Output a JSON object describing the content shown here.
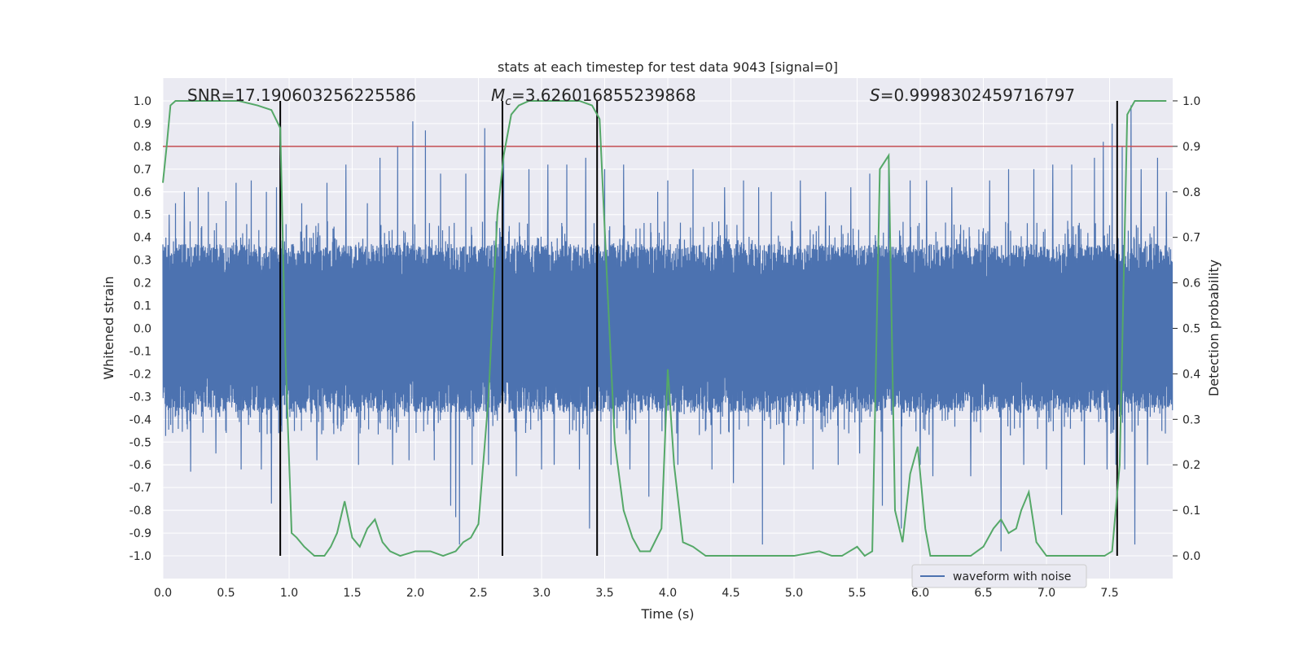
{
  "chart_data": {
    "type": "line",
    "title": "stats at each timestep for test data 9043 [signal=0]",
    "xlabel": "Time (s)",
    "ylabel": "Whitened strain",
    "y2label": "Detection probability",
    "xlim": [
      0,
      8
    ],
    "ylim": [
      -1.1,
      1.1
    ],
    "y2lim": [
      -0.05,
      1.05
    ],
    "xticks": [
      0.0,
      0.5,
      1.0,
      1.5,
      2.0,
      2.5,
      3.0,
      3.5,
      4.0,
      4.5,
      5.0,
      5.5,
      6.0,
      6.5,
      7.0,
      7.5
    ],
    "yticks": [
      -1.0,
      -0.9,
      -0.8,
      -0.7,
      -0.6,
      -0.5,
      -0.4,
      -0.3,
      -0.2,
      -0.1,
      0.0,
      0.1,
      0.2,
      0.3,
      0.4,
      0.5,
      0.6,
      0.7,
      0.8,
      0.9,
      1.0
    ],
    "y2ticks": [
      0.0,
      0.1,
      0.2,
      0.3,
      0.4,
      0.5,
      0.6,
      0.7,
      0.8,
      0.9,
      1.0
    ],
    "grid": true,
    "legend": {
      "position": "bottom-right",
      "entries": [
        "waveform with noise"
      ]
    },
    "annotations": {
      "snr": "SNR=17.190603256225586",
      "mc_symbol": "M",
      "mc_subscript": "c",
      "mc_value": "=3.626016855239868",
      "s_symbol": "S",
      "s_value": "=0.9998302459716797"
    },
    "threshold_line": {
      "axis": "y2",
      "value": 0.9,
      "color": "#c44e52"
    },
    "vertical_lines": [
      0.93,
      2.69,
      3.44,
      7.56
    ],
    "vertical_line_range_y2": [
      0.0,
      1.0
    ],
    "series": [
      {
        "name": "waveform with noise",
        "axis": "y",
        "color": "#4c72b0",
        "sample_rate": 500,
        "typical_amplitude": 0.38,
        "peaks": [
          [
            0.05,
            0.5
          ],
          [
            0.1,
            0.55
          ],
          [
            0.17,
            0.6
          ],
          [
            0.22,
            -0.63
          ],
          [
            0.28,
            0.62
          ],
          [
            0.36,
            0.6
          ],
          [
            0.42,
            -0.55
          ],
          [
            0.5,
            0.56
          ],
          [
            0.58,
            0.64
          ],
          [
            0.62,
            -0.62
          ],
          [
            0.7,
            0.65
          ],
          [
            0.78,
            -0.62
          ],
          [
            0.82,
            0.6
          ],
          [
            0.86,
            -0.77
          ],
          [
            0.9,
            0.62
          ],
          [
            1.1,
            0.55
          ],
          [
            1.22,
            -0.58
          ],
          [
            1.3,
            0.64
          ],
          [
            1.45,
            0.72
          ],
          [
            1.55,
            -0.6
          ],
          [
            1.62,
            0.55
          ],
          [
            1.72,
            0.75
          ],
          [
            1.82,
            -0.6
          ],
          [
            1.86,
            0.8
          ],
          [
            1.95,
            -0.58
          ],
          [
            1.98,
            0.91
          ],
          [
            2.08,
            0.87
          ],
          [
            2.15,
            -0.58
          ],
          [
            2.2,
            0.68
          ],
          [
            2.28,
            -0.78
          ],
          [
            2.32,
            -0.83
          ],
          [
            2.35,
            -0.95
          ],
          [
            2.4,
            0.68
          ],
          [
            2.45,
            -0.6
          ],
          [
            2.55,
            0.88
          ],
          [
            2.58,
            -0.6
          ],
          [
            2.7,
            0.76
          ],
          [
            2.8,
            -0.65
          ],
          [
            2.9,
            0.7
          ],
          [
            3.0,
            -0.62
          ],
          [
            3.05,
            0.72
          ],
          [
            3.1,
            -0.6
          ],
          [
            3.2,
            0.72
          ],
          [
            3.3,
            -0.62
          ],
          [
            3.35,
            0.75
          ],
          [
            3.38,
            -0.88
          ],
          [
            3.5,
            0.7
          ],
          [
            3.55,
            -0.6
          ],
          [
            3.65,
            0.72
          ],
          [
            3.7,
            -0.62
          ],
          [
            3.85,
            -0.74
          ],
          [
            3.92,
            0.6
          ],
          [
            4.0,
            0.65
          ],
          [
            4.08,
            -0.6
          ],
          [
            4.2,
            0.7
          ],
          [
            4.35,
            -0.62
          ],
          [
            4.45,
            0.62
          ],
          [
            4.52,
            -0.68
          ],
          [
            4.6,
            0.65
          ],
          [
            4.72,
            0.62
          ],
          [
            4.75,
            -0.95
          ],
          [
            4.82,
            0.6
          ],
          [
            4.92,
            -0.6
          ],
          [
            5.05,
            0.65
          ],
          [
            5.15,
            -0.62
          ],
          [
            5.25,
            0.6
          ],
          [
            5.35,
            -0.6
          ],
          [
            5.45,
            0.62
          ],
          [
            5.52,
            -0.55
          ],
          [
            5.6,
            0.68
          ],
          [
            5.7,
            -0.78
          ],
          [
            5.75,
            0.7
          ],
          [
            5.85,
            -0.88
          ],
          [
            5.92,
            0.65
          ],
          [
            6.0,
            -0.6
          ],
          [
            6.05,
            0.65
          ],
          [
            6.1,
            -0.65
          ],
          [
            6.25,
            0.62
          ],
          [
            6.4,
            -0.65
          ],
          [
            6.55,
            0.65
          ],
          [
            6.64,
            -0.98
          ],
          [
            6.7,
            0.7
          ],
          [
            6.82,
            -0.6
          ],
          [
            6.9,
            0.7
          ],
          [
            7.0,
            -0.62
          ],
          [
            7.05,
            0.72
          ],
          [
            7.12,
            -0.82
          ],
          [
            7.2,
            0.72
          ],
          [
            7.3,
            -0.6
          ],
          [
            7.38,
            0.75
          ],
          [
            7.45,
            0.82
          ],
          [
            7.48,
            -0.62
          ],
          [
            7.52,
            0.9
          ],
          [
            7.55,
            -0.6
          ],
          [
            7.6,
            0.8
          ],
          [
            7.62,
            -0.62
          ],
          [
            7.67,
            0.98
          ],
          [
            7.7,
            -0.95
          ],
          [
            7.75,
            0.7
          ],
          [
            7.8,
            -0.6
          ],
          [
            7.88,
            0.75
          ],
          [
            7.95,
            0.6
          ]
        ]
      },
      {
        "name": "",
        "axis": "y2",
        "color": "#55a868",
        "x": [
          0.0,
          0.03,
          0.06,
          0.1,
          0.2,
          0.4,
          0.6,
          0.75,
          0.86,
          0.93,
          0.97,
          1.02,
          1.06,
          1.12,
          1.2,
          1.28,
          1.33,
          1.38,
          1.44,
          1.5,
          1.56,
          1.62,
          1.68,
          1.74,
          1.8,
          1.88,
          2.0,
          2.12,
          2.22,
          2.32,
          2.38,
          2.44,
          2.5,
          2.58,
          2.65,
          2.7,
          2.76,
          2.82,
          2.9,
          3.1,
          3.3,
          3.4,
          3.46,
          3.52,
          3.58,
          3.65,
          3.72,
          3.78,
          3.86,
          3.95,
          4.0,
          4.05,
          4.12,
          4.2,
          4.3,
          4.4,
          4.6,
          5.0,
          5.2,
          5.3,
          5.38,
          5.44,
          5.5,
          5.56,
          5.62,
          5.68,
          5.75,
          5.8,
          5.86,
          5.92,
          5.98,
          6.04,
          6.08,
          6.16,
          6.25,
          6.4,
          6.5,
          6.58,
          6.64,
          6.7,
          6.76,
          6.8,
          6.86,
          6.92,
          7.0,
          7.2,
          7.38,
          7.46,
          7.52,
          7.58,
          7.64,
          7.7,
          7.8,
          7.95
        ],
        "y": [
          0.82,
          0.9,
          0.99,
          1.0,
          1.0,
          1.0,
          1.0,
          0.99,
          0.98,
          0.94,
          0.45,
          0.05,
          0.04,
          0.02,
          0.0,
          0.0,
          0.02,
          0.05,
          0.12,
          0.04,
          0.02,
          0.06,
          0.08,
          0.03,
          0.01,
          0.0,
          0.01,
          0.01,
          0.0,
          0.01,
          0.03,
          0.04,
          0.07,
          0.35,
          0.75,
          0.88,
          0.97,
          0.99,
          1.0,
          1.0,
          1.0,
          0.99,
          0.96,
          0.6,
          0.25,
          0.1,
          0.04,
          0.01,
          0.01,
          0.06,
          0.41,
          0.2,
          0.03,
          0.02,
          0.0,
          0.0,
          0.0,
          0.0,
          0.01,
          0.0,
          0.0,
          0.01,
          0.02,
          0.0,
          0.01,
          0.85,
          0.88,
          0.1,
          0.03,
          0.18,
          0.24,
          0.06,
          0.0,
          0.0,
          0.0,
          0.0,
          0.02,
          0.06,
          0.08,
          0.05,
          0.06,
          0.1,
          0.14,
          0.03,
          0.0,
          0.0,
          0.0,
          0.0,
          0.01,
          0.2,
          0.97,
          1.0,
          1.0,
          1.0
        ]
      }
    ]
  }
}
